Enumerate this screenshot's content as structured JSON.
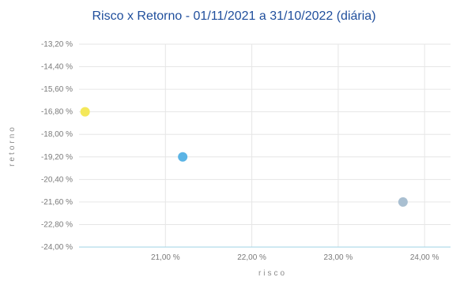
{
  "chart_data": {
    "type": "scatter",
    "title": "Risco x Retorno - 01/11/2021 a 31/10/2022 (diária)",
    "xlabel": "risco",
    "ylabel": "retorno",
    "xlim": [
      20.0,
      24.3
    ],
    "ylim": [
      -24.0,
      -13.2
    ],
    "x_ticks": [
      {
        "value": 21.0,
        "label": "21,00 %"
      },
      {
        "value": 22.0,
        "label": "22,00 %"
      },
      {
        "value": 23.0,
        "label": "23,00 %"
      },
      {
        "value": 24.0,
        "label": "24,00 %"
      }
    ],
    "y_ticks": [
      {
        "value": -13.2,
        "label": "-13,20 %"
      },
      {
        "value": -14.4,
        "label": "-14,40 %"
      },
      {
        "value": -15.6,
        "label": "-15,60 %"
      },
      {
        "value": -16.8,
        "label": "-16,80 %"
      },
      {
        "value": -18.0,
        "label": "-18,00 %"
      },
      {
        "value": -19.2,
        "label": "-19,20 %"
      },
      {
        "value": -20.4,
        "label": "-20,40 %"
      },
      {
        "value": -21.6,
        "label": "-21,60 %"
      },
      {
        "value": -22.8,
        "label": "-22,80 %"
      },
      {
        "value": -24.0,
        "label": "-24,00 %"
      }
    ],
    "grid": true,
    "points": [
      {
        "x": 20.07,
        "y": -16.8,
        "color": "#f4e85a"
      },
      {
        "x": 21.2,
        "y": -19.2,
        "color": "#5bb4e5"
      },
      {
        "x": 23.75,
        "y": -21.6,
        "color": "#a9bfd1"
      }
    ]
  }
}
